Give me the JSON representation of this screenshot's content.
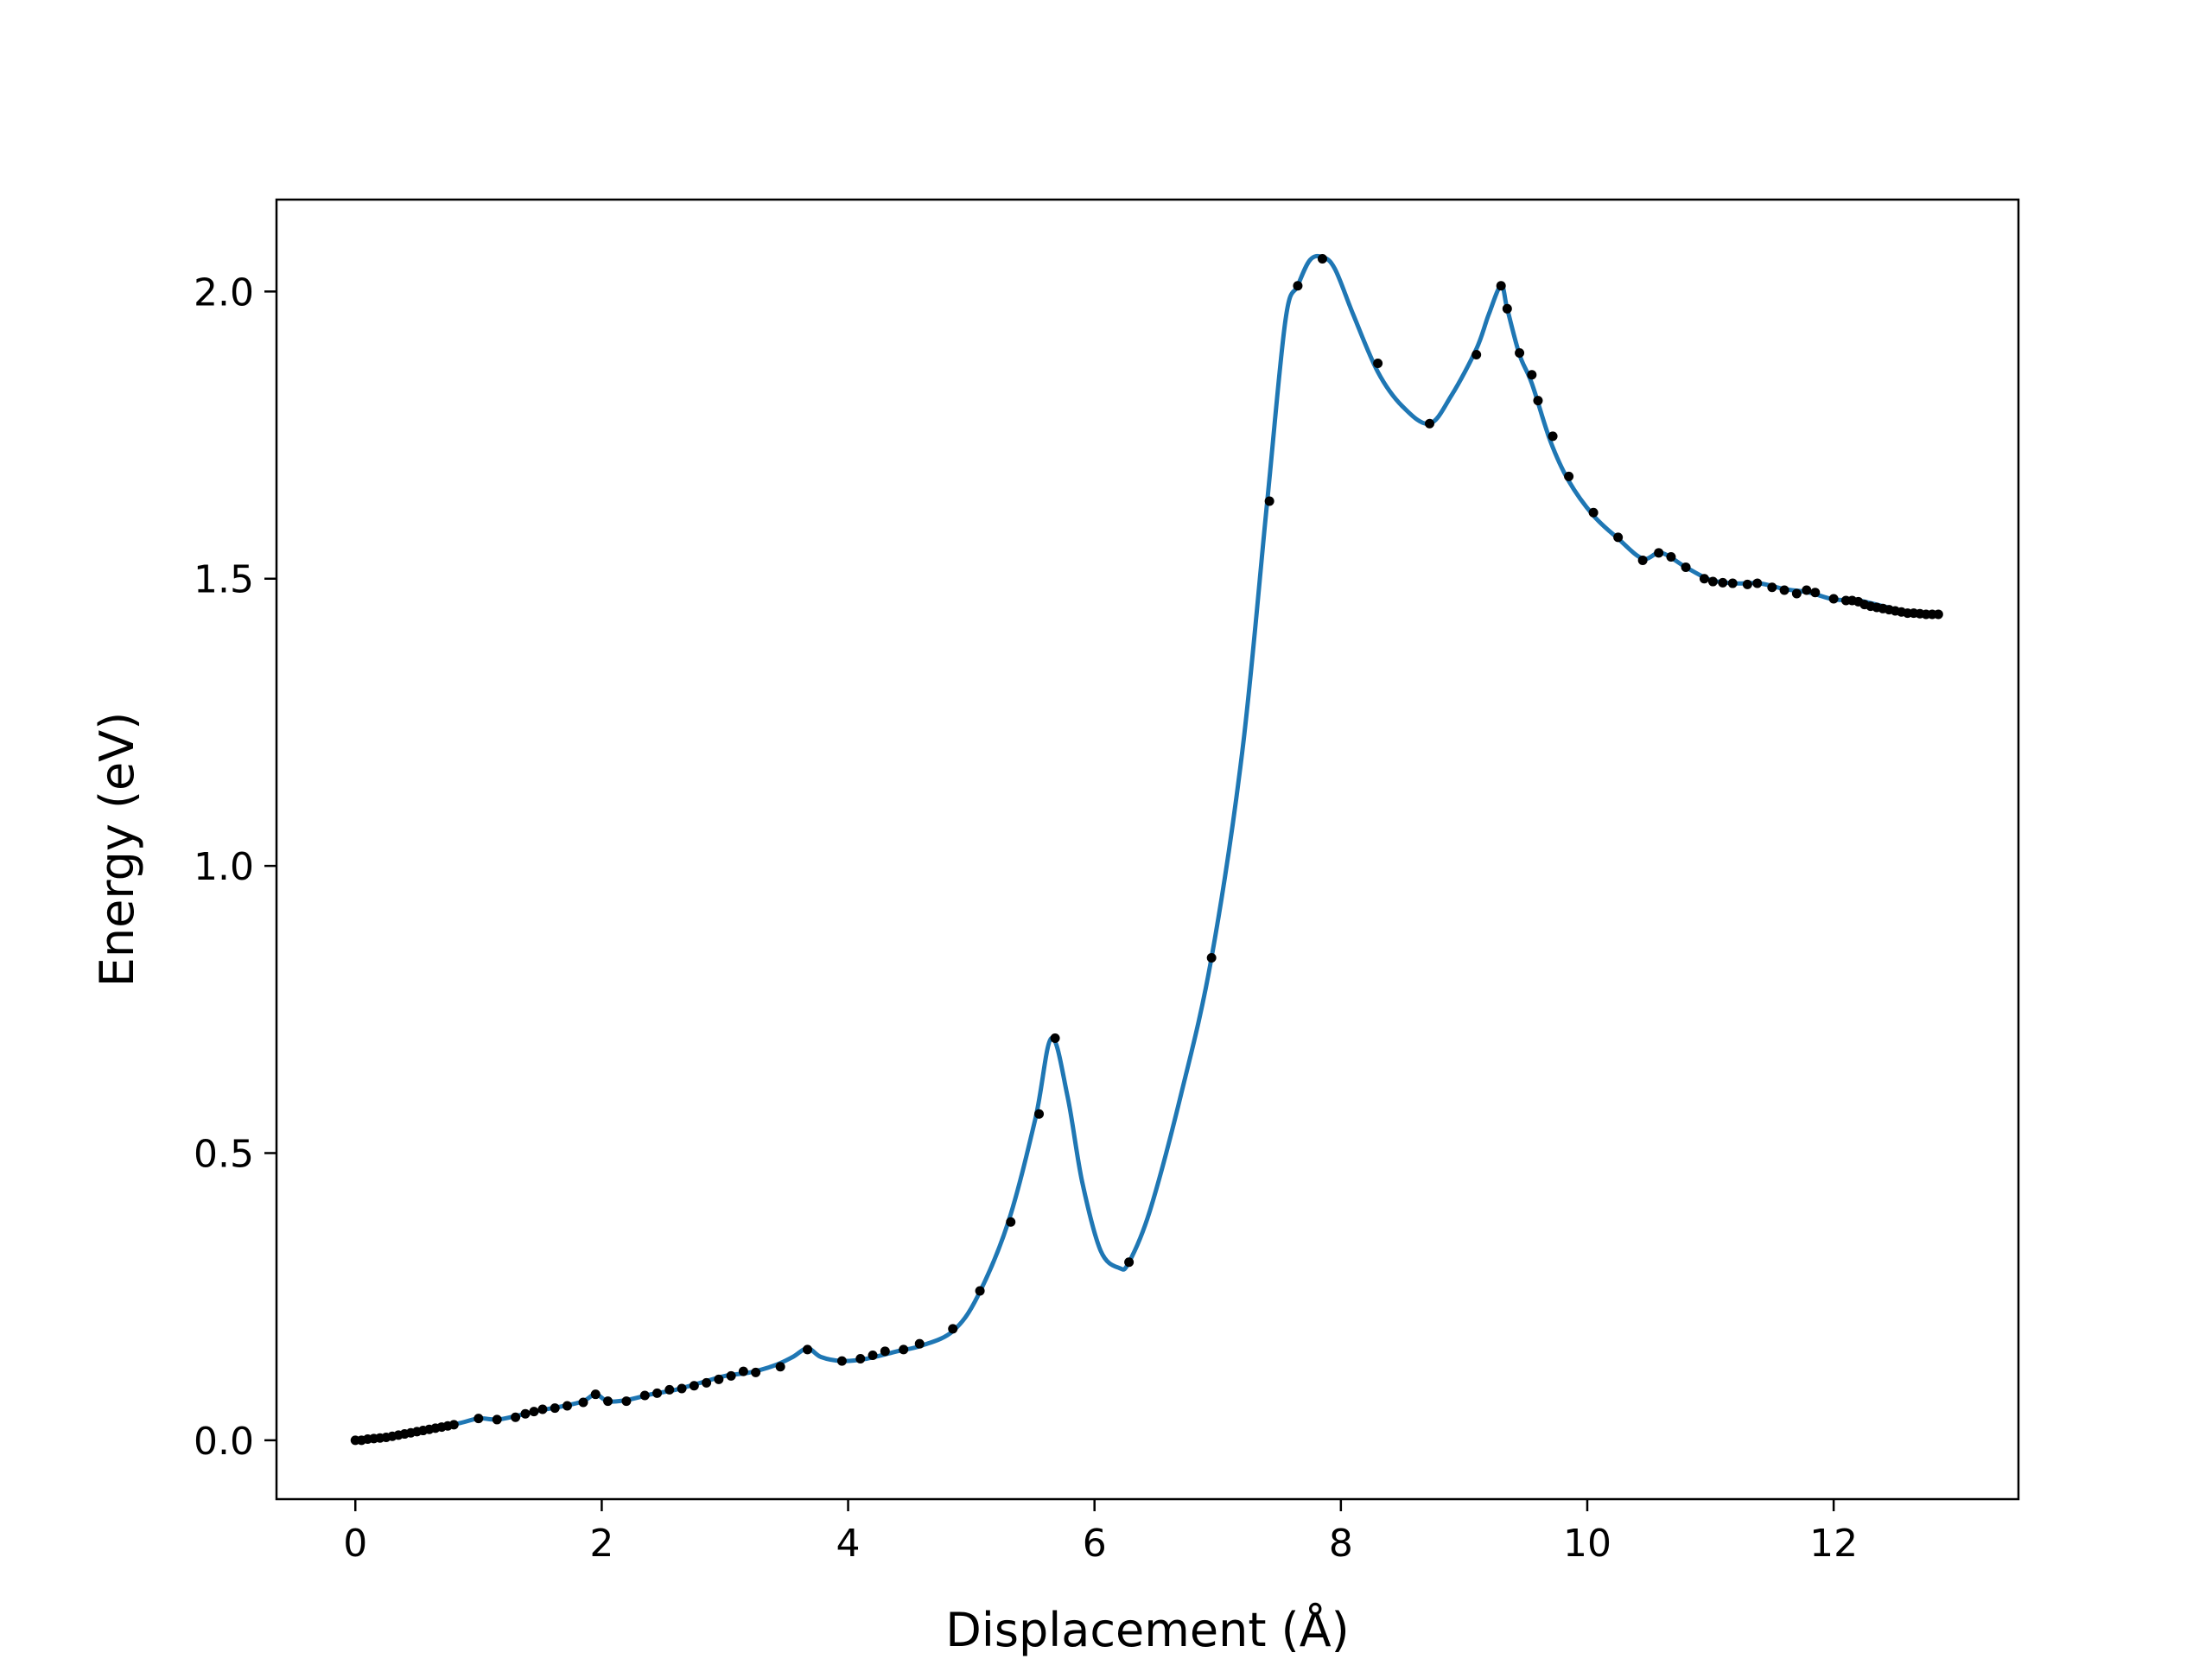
{
  "chart_data": {
    "type": "line",
    "title": "",
    "xlabel": "Displacement (Å)",
    "ylabel": "Energy (eV)",
    "xlim": [
      -0.64,
      13.5
    ],
    "ylim": [
      -0.1025,
      2.16
    ],
    "xticks": [
      {
        "value": 0,
        "label": "0"
      },
      {
        "value": 2,
        "label": "2"
      },
      {
        "value": 4,
        "label": "4"
      },
      {
        "value": 6,
        "label": "6"
      },
      {
        "value": 8,
        "label": "8"
      },
      {
        "value": 10,
        "label": "10"
      },
      {
        "value": 12,
        "label": "12"
      }
    ],
    "yticks": [
      {
        "value": 0.0,
        "label": "0.0"
      },
      {
        "value": 0.5,
        "label": "0.5"
      },
      {
        "value": 1.0,
        "label": "1.0"
      },
      {
        "value": 1.5,
        "label": "1.5"
      },
      {
        "value": 2.0,
        "label": "2.0"
      }
    ],
    "grid": false,
    "legend": "none",
    "colors": {
      "curve": "#1f77b4",
      "points": "#000000",
      "axes": "#000000"
    },
    "series": [
      {
        "kind": "line",
        "x": [
          0,
          0.3,
          0.6,
          0.85,
          1.0,
          1.15,
          1.3,
          1.5,
          1.7,
          1.85,
          1.95,
          2.05,
          2.2,
          2.4,
          2.6,
          2.8,
          3.0,
          3.2,
          3.4,
          3.55,
          3.67,
          3.78,
          3.95,
          4.15,
          4.4,
          4.6,
          4.85,
          5.05,
          5.3,
          5.52,
          5.65,
          5.78,
          5.9,
          6.05,
          6.2,
          6.28,
          6.45,
          6.7,
          6.95,
          7.2,
          7.4,
          7.55,
          7.65,
          7.75,
          7.85,
          7.95,
          8.1,
          8.3,
          8.5,
          8.72,
          8.9,
          9.1,
          9.2,
          9.3,
          9.35,
          9.45,
          9.55,
          9.7,
          9.85,
          10.05,
          10.25,
          10.45,
          10.6,
          10.8,
          11.0,
          11.2,
          11.4,
          11.6,
          11.8,
          12.0,
          12.2,
          12.4,
          12.6,
          12.85
        ],
        "y": [
          0.0,
          0.008,
          0.02,
          0.03,
          0.038,
          0.036,
          0.042,
          0.052,
          0.06,
          0.068,
          0.08,
          0.068,
          0.07,
          0.08,
          0.088,
          0.1,
          0.112,
          0.118,
          0.13,
          0.145,
          0.16,
          0.145,
          0.138,
          0.142,
          0.155,
          0.165,
          0.19,
          0.25,
          0.38,
          0.56,
          0.7,
          0.6,
          0.45,
          0.33,
          0.3,
          0.31,
          0.4,
          0.6,
          0.84,
          1.2,
          1.63,
          1.95,
          2.01,
          2.055,
          2.06,
          2.04,
          1.96,
          1.86,
          1.8,
          1.77,
          1.82,
          1.9,
          1.96,
          2.01,
          1.97,
          1.89,
          1.84,
          1.74,
          1.67,
          1.61,
          1.57,
          1.535,
          1.545,
          1.52,
          1.498,
          1.492,
          1.492,
          1.482,
          1.476,
          1.464,
          1.462,
          1.452,
          1.442,
          1.438
        ]
      },
      {
        "kind": "scatter",
        "x": [
          0.0,
          0.05,
          0.1,
          0.15,
          0.2,
          0.25,
          0.3,
          0.35,
          0.4,
          0.45,
          0.5,
          0.55,
          0.6,
          0.65,
          0.7,
          0.75,
          0.8,
          1.0,
          1.15,
          1.3,
          1.38,
          1.45,
          1.52,
          1.62,
          1.72,
          1.85,
          1.95,
          2.05,
          2.2,
          2.35,
          2.45,
          2.55,
          2.65,
          2.75,
          2.85,
          2.95,
          3.05,
          3.15,
          3.25,
          3.45,
          3.67,
          3.95,
          4.1,
          4.2,
          4.3,
          4.45,
          4.58,
          4.85,
          5.07,
          5.32,
          5.55,
          5.68,
          6.28,
          6.95,
          7.42,
          7.65,
          7.85,
          8.3,
          8.72,
          9.1,
          9.3,
          9.35,
          9.45,
          9.55,
          9.6,
          9.72,
          9.85,
          10.05,
          10.25,
          10.45,
          10.58,
          10.68,
          10.8,
          10.95,
          11.02,
          11.1,
          11.18,
          11.3,
          11.38,
          11.5,
          11.6,
          11.7,
          11.78,
          11.85,
          12.0,
          12.1,
          12.15,
          12.2,
          12.25,
          12.3,
          12.35,
          12.4,
          12.45,
          12.5,
          12.55,
          12.6,
          12.65,
          12.7,
          12.75,
          12.8,
          12.85
        ],
        "y": [
          0.0,
          0.0,
          0.002,
          0.003,
          0.004,
          0.005,
          0.007,
          0.009,
          0.011,
          0.013,
          0.015,
          0.017,
          0.019,
          0.021,
          0.023,
          0.025,
          0.027,
          0.038,
          0.036,
          0.04,
          0.046,
          0.05,
          0.054,
          0.056,
          0.06,
          0.066,
          0.08,
          0.068,
          0.068,
          0.078,
          0.082,
          0.088,
          0.09,
          0.095,
          0.1,
          0.106,
          0.112,
          0.12,
          0.118,
          0.128,
          0.158,
          0.138,
          0.142,
          0.148,
          0.155,
          0.158,
          0.168,
          0.194,
          0.26,
          0.38,
          0.568,
          0.7,
          0.31,
          0.84,
          1.635,
          2.01,
          2.057,
          1.875,
          1.77,
          1.89,
          2.01,
          1.97,
          1.893,
          1.855,
          1.81,
          1.748,
          1.678,
          1.615,
          1.572,
          1.532,
          1.545,
          1.538,
          1.52,
          1.5,
          1.495,
          1.493,
          1.492,
          1.49,
          1.492,
          1.485,
          1.48,
          1.474,
          1.48,
          1.476,
          1.465,
          1.462,
          1.462,
          1.46,
          1.455,
          1.452,
          1.45,
          1.448,
          1.446,
          1.444,
          1.442,
          1.44,
          1.44,
          1.439,
          1.438,
          1.438,
          1.438
        ]
      }
    ]
  }
}
